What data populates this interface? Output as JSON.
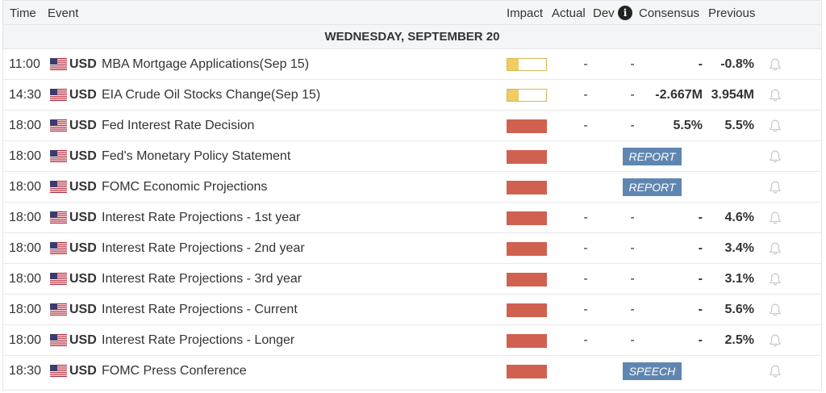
{
  "header": {
    "time": "Time",
    "event": "Event",
    "impact": "Impact",
    "actual": "Actual",
    "dev": "Dev",
    "consensus": "Consensus",
    "previous": "Previous",
    "info_icon": "info-icon"
  },
  "day_label": "WEDNESDAY, SEPTEMBER 20",
  "colors": {
    "impact_low": "#f2cb63",
    "impact_high": "#d06150",
    "badge": "#5f86b0"
  },
  "rows": [
    {
      "time": "11:00",
      "currency": "USD",
      "event": "MBA Mortgage Applications(Sep 15)",
      "impact": "low",
      "actual": "-",
      "dev": "-",
      "consensus": "-",
      "previous": "-0.8%"
    },
    {
      "time": "14:30",
      "currency": "USD",
      "event": "EIA Crude Oil Stocks Change(Sep 15)",
      "impact": "low",
      "actual": "-",
      "dev": "-",
      "consensus": "-2.667M",
      "previous": "3.954M"
    },
    {
      "time": "18:00",
      "currency": "USD",
      "event": "Fed Interest Rate Decision",
      "impact": "high",
      "actual": "-",
      "dev": "-",
      "consensus": "5.5%",
      "previous": "5.5%"
    },
    {
      "time": "18:00",
      "currency": "USD",
      "event": "Fed's Monetary Policy Statement",
      "impact": "high",
      "badge": "REPORT"
    },
    {
      "time": "18:00",
      "currency": "USD",
      "event": "FOMC Economic Projections",
      "impact": "high",
      "badge": "REPORT"
    },
    {
      "time": "18:00",
      "currency": "USD",
      "event": "Interest Rate Projections - 1st year",
      "impact": "high",
      "actual": "-",
      "dev": "-",
      "consensus": "-",
      "previous": "4.6%"
    },
    {
      "time": "18:00",
      "currency": "USD",
      "event": "Interest Rate Projections - 2nd year",
      "impact": "high",
      "actual": "-",
      "dev": "-",
      "consensus": "-",
      "previous": "3.4%"
    },
    {
      "time": "18:00",
      "currency": "USD",
      "event": "Interest Rate Projections - 3rd year",
      "impact": "high",
      "actual": "-",
      "dev": "-",
      "consensus": "-",
      "previous": "3.1%"
    },
    {
      "time": "18:00",
      "currency": "USD",
      "event": "Interest Rate Projections - Current",
      "impact": "high",
      "actual": "-",
      "dev": "-",
      "consensus": "-",
      "previous": "5.6%"
    },
    {
      "time": "18:00",
      "currency": "USD",
      "event": "Interest Rate Projections - Longer",
      "impact": "high",
      "actual": "-",
      "dev": "-",
      "consensus": "-",
      "previous": "2.5%"
    },
    {
      "time": "18:30",
      "currency": "USD",
      "event": "FOMC Press Conference",
      "impact": "high",
      "badge": "SPEECH"
    }
  ]
}
